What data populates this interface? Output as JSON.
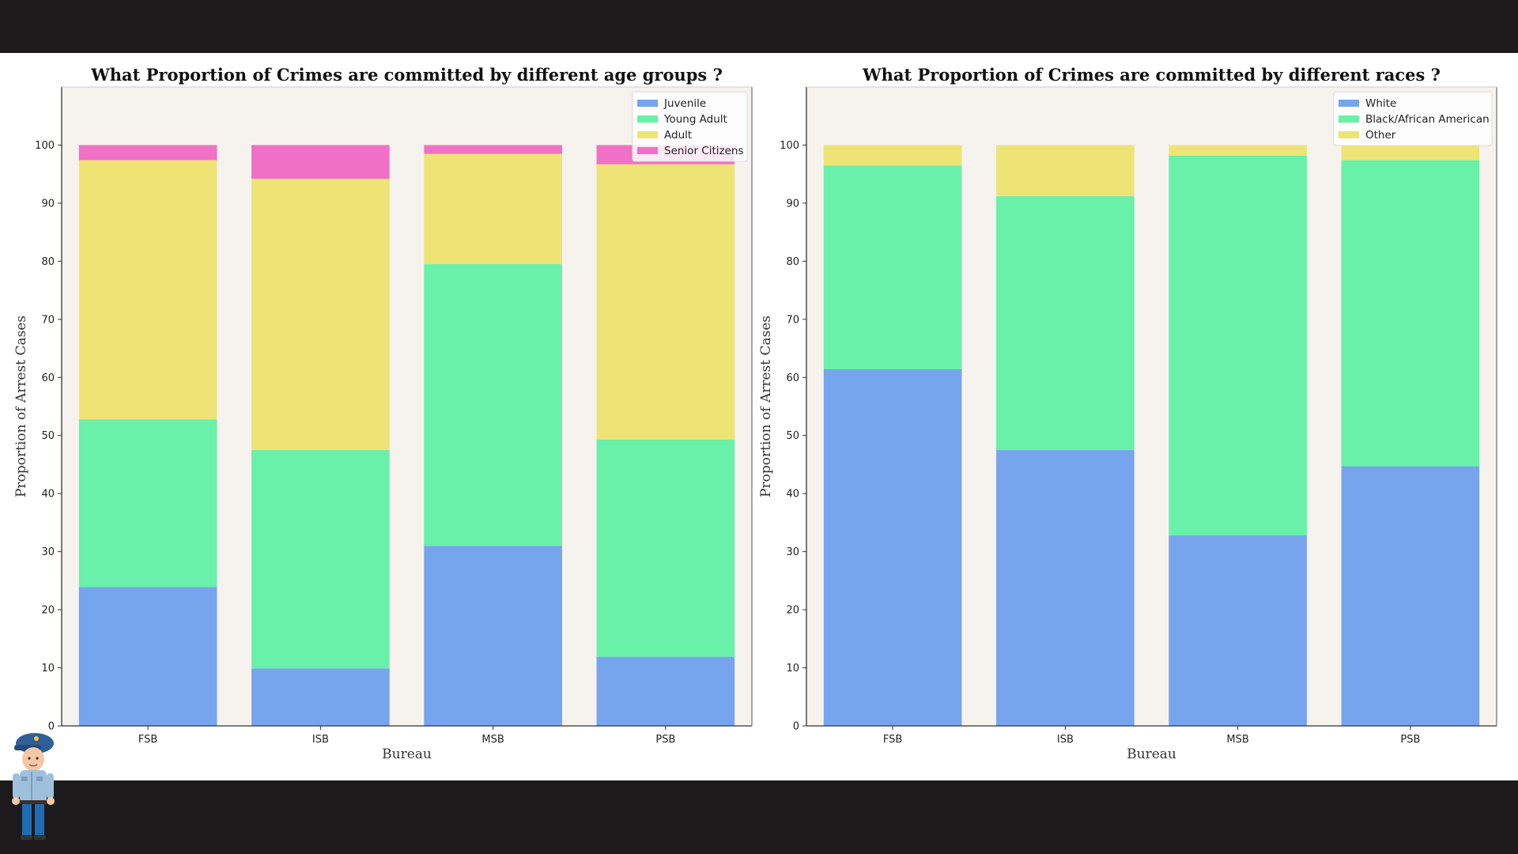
{
  "colors": {
    "page_background": "#1c1a1b",
    "plot_background": "#f6f2ee",
    "blue": "#76a5ee",
    "green": "#69f0a9",
    "yellow": "#ede475",
    "pink": "#ef70c4"
  },
  "mascot": {
    "icon": "police-officer-illustration"
  },
  "chart_data": [
    {
      "type": "bar",
      "stacked": true,
      "title": "What Proportion of Crimes are committed by different age groups ?",
      "xlabel": "Bureau",
      "ylabel": "Proportion of Arrest Cases",
      "categories": [
        "FSB",
        "ISB",
        "MSB",
        "PSB"
      ],
      "ylim": [
        0,
        110
      ],
      "yticks": [
        0,
        10,
        20,
        30,
        40,
        50,
        60,
        70,
        80,
        90,
        100
      ],
      "legend_position": "upper right",
      "grid": false,
      "series": [
        {
          "name": "Juvenile",
          "color": "#76a5ee",
          "values": [
            23.9,
            9.9,
            31.0,
            11.9
          ]
        },
        {
          "name": "Young Adult",
          "color": "#69f0a9",
          "values": [
            28.9,
            37.6,
            48.5,
            37.4
          ]
        },
        {
          "name": "Adult",
          "color": "#ede475",
          "values": [
            44.6,
            46.7,
            19.0,
            47.4
          ]
        },
        {
          "name": "Senior Citizens",
          "color": "#ef70c4",
          "values": [
            2.6,
            5.8,
            1.5,
            3.3
          ]
        }
      ]
    },
    {
      "type": "bar",
      "stacked": true,
      "title": "What Proportion of Crimes are committed by different races ?",
      "xlabel": "Bureau",
      "ylabel": "Proportion of Arrest Cases",
      "categories": [
        "FSB",
        "ISB",
        "MSB",
        "PSB"
      ],
      "ylim": [
        0,
        110
      ],
      "yticks": [
        0,
        10,
        20,
        30,
        40,
        50,
        60,
        70,
        80,
        90,
        100
      ],
      "legend_position": "upper right",
      "grid": false,
      "series": [
        {
          "name": "White",
          "color": "#76a5ee",
          "values": [
            61.4,
            47.5,
            32.8,
            44.7
          ]
        },
        {
          "name": "Black/African American",
          "color": "#69f0a9",
          "values": [
            35.1,
            43.7,
            65.4,
            52.7
          ]
        },
        {
          "name": "Other",
          "color": "#ede475",
          "values": [
            3.5,
            8.8,
            1.8,
            2.6
          ]
        }
      ]
    }
  ]
}
